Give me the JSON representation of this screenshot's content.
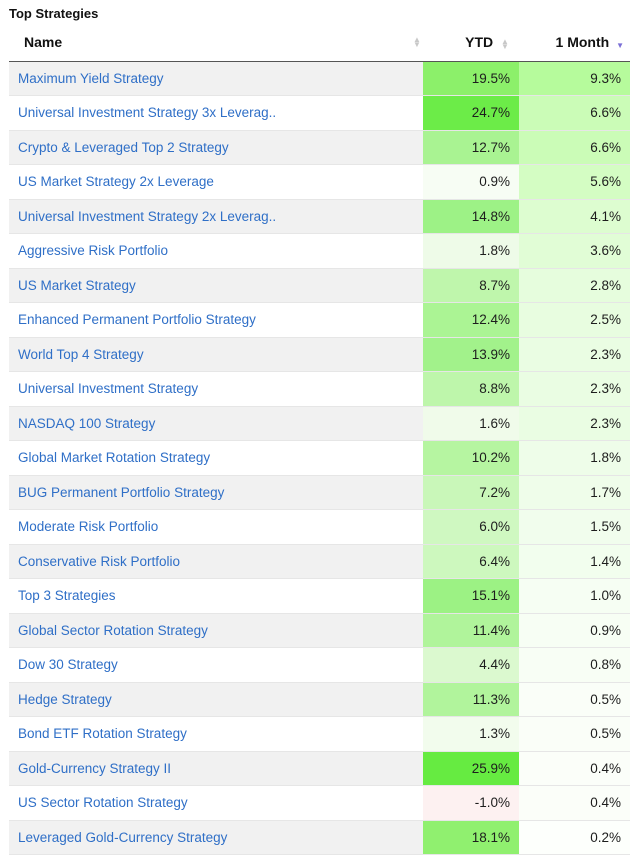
{
  "title": "Top Strategies",
  "columns": {
    "name": "Name",
    "ytd": "YTD",
    "month": "1 Month"
  },
  "rows": [
    {
      "name": "Maximum Yield Strategy",
      "ytd": "19.5%",
      "month": "9.3%",
      "ytd_bg": "#8cf06a",
      "month_bg": "#b6fb9c"
    },
    {
      "name": "Universal Investment Strategy 3x Leverag..",
      "ytd": "24.7%",
      "month": "6.6%",
      "ytd_bg": "#6cec48",
      "month_bg": "#cbfcb7"
    },
    {
      "name": "Crypto & Leveraged Top 2 Strategy",
      "ytd": "12.7%",
      "month": "6.6%",
      "ytd_bg": "#a9f392",
      "month_bg": "#cbfcb7"
    },
    {
      "name": "US Market Strategy 2x Leverage",
      "ytd": "0.9%",
      "month": "5.6%",
      "ytd_bg": "#f7fdf4",
      "month_bg": "#d4fdc3"
    },
    {
      "name": "Universal Investment Strategy 2x Leverag..",
      "ytd": "14.8%",
      "month": "4.1%",
      "ytd_bg": "#9df286",
      "month_bg": "#ddfdd0"
    },
    {
      "name": "Aggressive Risk Portfolio",
      "ytd": "1.8%",
      "month": "3.6%",
      "ytd_bg": "#eefbe8",
      "month_bg": "#e1fdd6"
    },
    {
      "name": "US Market Strategy",
      "ytd": "8.7%",
      "month": "2.8%",
      "ytd_bg": "#bff6ac",
      "month_bg": "#e6fddd"
    },
    {
      "name": "Enhanced Permanent Portfolio Strategy",
      "ytd": "12.4%",
      "month": "2.5%",
      "ytd_bg": "#abf494",
      "month_bg": "#e8fde0"
    },
    {
      "name": "World Top 4 Strategy",
      "ytd": "13.9%",
      "month": "2.3%",
      "ytd_bg": "#a2f28b",
      "month_bg": "#eafde3"
    },
    {
      "name": "Universal Investment Strategy",
      "ytd": "8.8%",
      "month": "2.3%",
      "ytd_bg": "#bef6ab",
      "month_bg": "#eafde3"
    },
    {
      "name": "NASDAQ 100 Strategy",
      "ytd": "1.6%",
      "month": "2.3%",
      "ytd_bg": "#f0fbea",
      "month_bg": "#eafde3"
    },
    {
      "name": "Global Market Rotation Strategy",
      "ytd": "10.2%",
      "month": "1.8%",
      "ytd_bg": "#b6f5a1",
      "month_bg": "#eefde9"
    },
    {
      "name": "BUG Permanent Portfolio Strategy",
      "ytd": "7.2%",
      "month": "1.7%",
      "ytd_bg": "#c9f7b9",
      "month_bg": "#effdea"
    },
    {
      "name": "Moderate Risk Portfolio",
      "ytd": "6.0%",
      "month": "1.5%",
      "ytd_bg": "#cff8c1",
      "month_bg": "#f1fded"
    },
    {
      "name": "Conservative Risk Portfolio",
      "ytd": "6.4%",
      "month": "1.4%",
      "ytd_bg": "#cdf8be",
      "month_bg": "#f2feee"
    },
    {
      "name": "Top 3 Strategies",
      "ytd": "15.1%",
      "month": "1.0%",
      "ytd_bg": "#9cf284",
      "month_bg": "#f6fef3"
    },
    {
      "name": "Global Sector Rotation Strategy",
      "ytd": "11.4%",
      "month": "0.9%",
      "ytd_bg": "#b0f49b",
      "month_bg": "#f7fef4"
    },
    {
      "name": "Dow 30 Strategy",
      "ytd": "4.4%",
      "month": "0.8%",
      "ytd_bg": "#dbf9cf",
      "month_bg": "#f8fef5"
    },
    {
      "name": "Hedge Strategy",
      "ytd": "11.3%",
      "month": "0.5%",
      "ytd_bg": "#b1f49c",
      "month_bg": "#fafef8"
    },
    {
      "name": "Bond ETF Rotation Strategy",
      "ytd": "1.3%",
      "month": "0.5%",
      "ytd_bg": "#f2fced",
      "month_bg": "#fafef8"
    },
    {
      "name": "Gold-Currency Strategy II",
      "ytd": "25.9%",
      "month": "0.4%",
      "ytd_bg": "#66eb41",
      "month_bg": "#fbfef9"
    },
    {
      "name": "US Sector Rotation Strategy",
      "ytd": "-1.0%",
      "month": "0.4%",
      "ytd_bg": "#fdf1f1",
      "month_bg": "#fbfef9"
    },
    {
      "name": "Leveraged Gold-Currency Strategy",
      "ytd": "18.1%",
      "month": "0.2%",
      "ytd_bg": "#90f06f",
      "month_bg": "#fdfffc"
    }
  ],
  "icons": {
    "sort_unsorted": "sort-both-icon",
    "sort_active": "sort-descending-icon"
  },
  "colors": {
    "link": "#2f6fc7",
    "sort_active": "#7b6fd6",
    "row_stripe": "#f1f1f1"
  }
}
